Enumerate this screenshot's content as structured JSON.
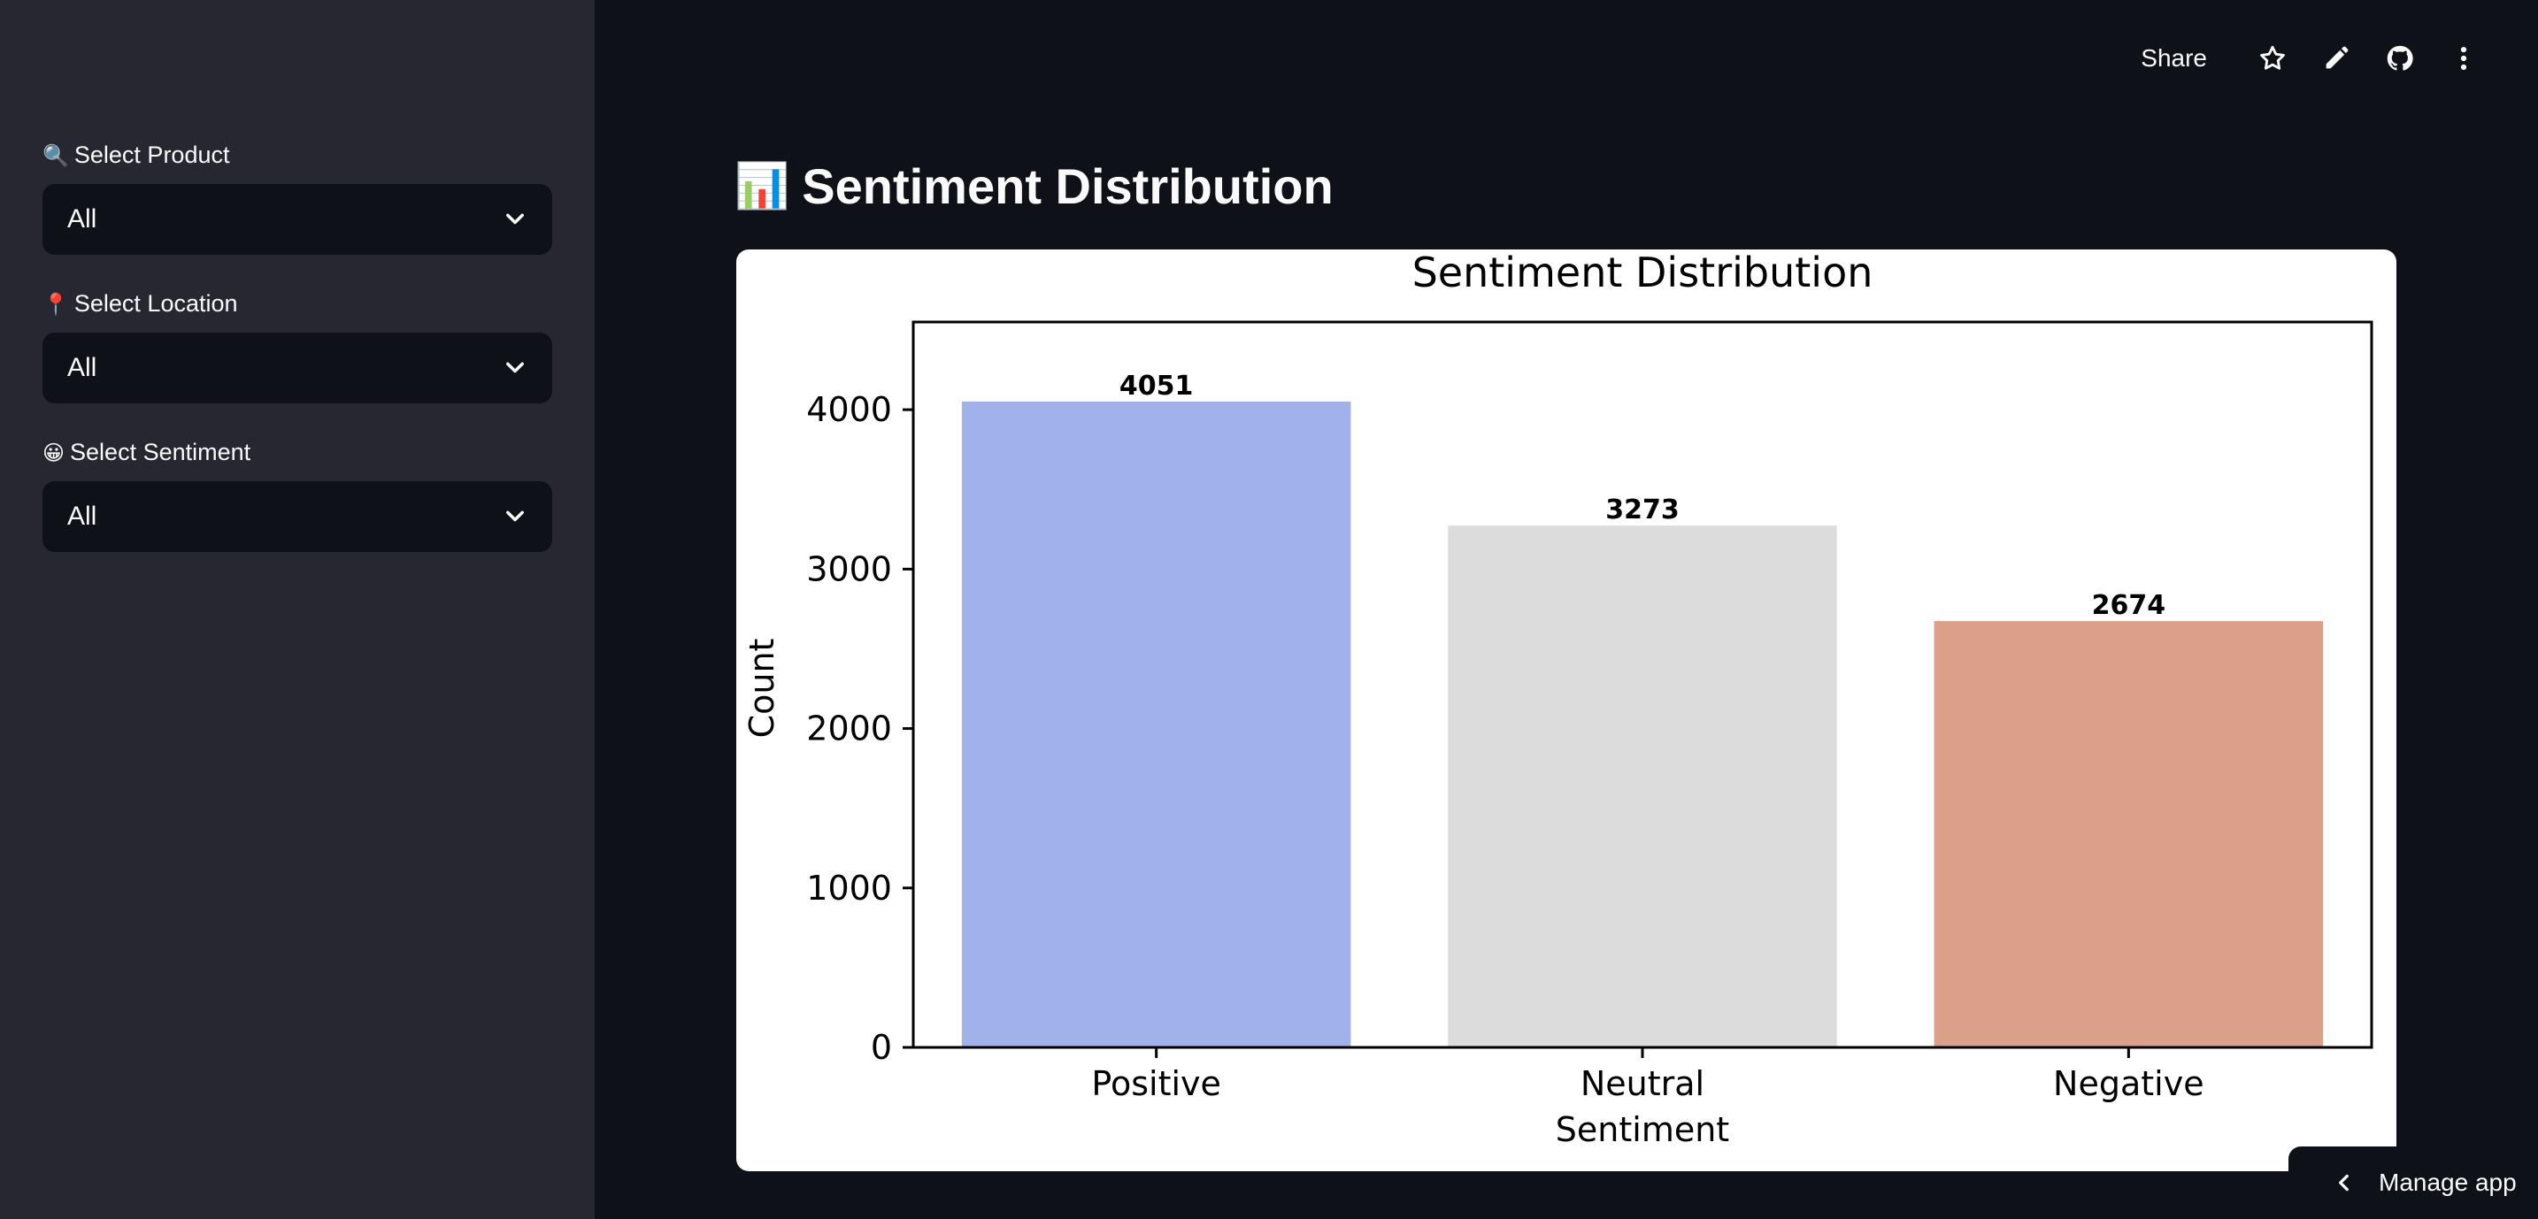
{
  "sidebar": {
    "filters": [
      {
        "emoji": "🔍",
        "label": "Select Product",
        "value": "All"
      },
      {
        "emoji": "📍",
        "label": "Select Location",
        "value": "All"
      },
      {
        "emoji": "😀",
        "label": "Select Sentiment",
        "value": "All"
      }
    ]
  },
  "toolbar": {
    "share_label": "Share",
    "icons": [
      "star-icon",
      "pencil-icon",
      "github-icon",
      "more-vertical-icon"
    ]
  },
  "main": {
    "title_emoji": "📊",
    "title": "Sentiment Distribution"
  },
  "chart_data": {
    "type": "bar",
    "title": "Sentiment Distribution",
    "xlabel": "Sentiment",
    "ylabel": "Count",
    "categories": [
      "Positive",
      "Neutral",
      "Negative"
    ],
    "values": [
      4051,
      3273,
      2674
    ],
    "data_labels": [
      "4051",
      "3273",
      "2674"
    ],
    "colors": [
      "#a1b2eb",
      "#dcdcdc",
      "#dba08a"
    ],
    "yticks": [
      0,
      1000,
      2000,
      3000,
      4000
    ],
    "ylim": [
      0,
      4550
    ],
    "grid": false,
    "legend": "none"
  },
  "footer": {
    "manage_app_label": "Manage app"
  },
  "colors": {
    "background": "#0e1117",
    "sidebar": "#262730",
    "text": "#fafafa"
  }
}
